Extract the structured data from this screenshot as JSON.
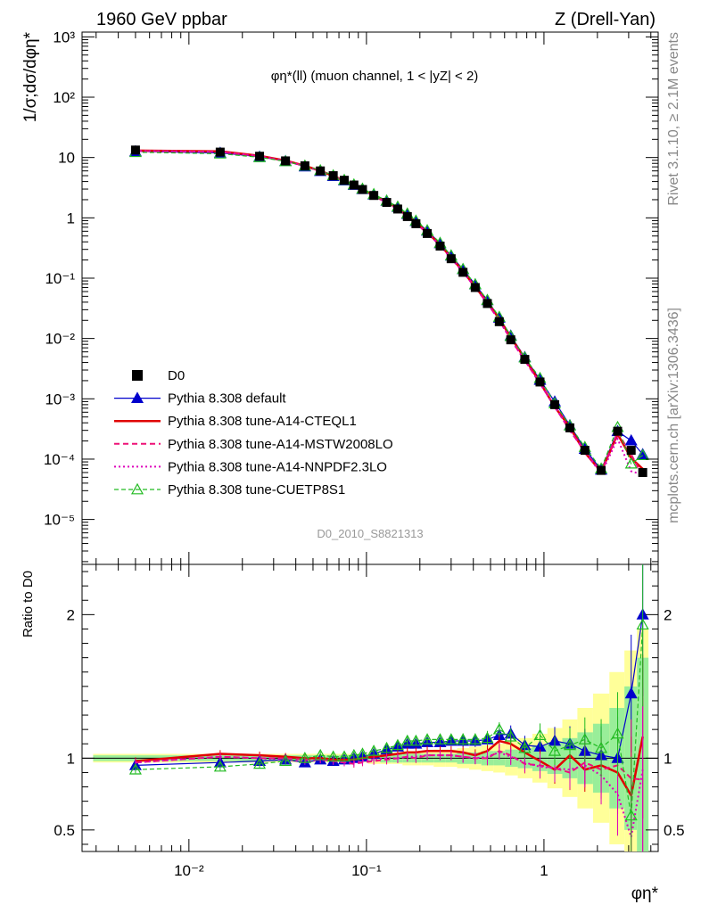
{
  "header": {
    "left": "1960 GeV ppbar",
    "right": "Z (Drell-Yan)"
  },
  "side_text": {
    "top": "Rivet 3.1.10, ≥ 2.1M events",
    "bottom": "mcplots.cern.ch [arXiv:1306.3436]"
  },
  "main_panel": {
    "ylabel": "1/σ;dσ/dφη*",
    "annotation": "φη*(ll) (muon channel, 1 < |yZ| < 2)",
    "watermark": "D0_2010_S8821313",
    "y_ticks": [
      "10⁻⁵",
      "10⁻⁴",
      "10⁻³",
      "10⁻²",
      "10⁻¹",
      "1",
      "10",
      "10²",
      "10³"
    ]
  },
  "ratio_panel": {
    "ylabel": "Ratio to D0",
    "y_ticks": [
      "0.5",
      "1",
      "2"
    ]
  },
  "x_axis": {
    "label": "φη*",
    "ticks": [
      "10⁻²",
      "10⁻¹",
      "1"
    ]
  },
  "legend": [
    {
      "label": "D0",
      "color": "#000000",
      "style": "square"
    },
    {
      "label": "Pythia 8.308 default",
      "color": "#0000cc",
      "style": "solid-triangle"
    },
    {
      "label": "Pythia 8.308 tune-A14-CTEQL1",
      "color": "#e00000",
      "style": "solid-thick"
    },
    {
      "label": "Pythia 8.308 tune-A14-MSTW2008LO",
      "color": "#ee1177",
      "style": "dashed"
    },
    {
      "label": "Pythia 8.308 tune-A14-NNPDF2.3LO",
      "color": "#dd00bb",
      "style": "dotted"
    },
    {
      "label": "Pythia 8.308 tune-CUETP8S1",
      "color": "#22bb22",
      "style": "dashed-open-triangle"
    }
  ],
  "chart_data": {
    "type": "line",
    "x_scale": "log",
    "xlim": [
      0.0025,
      4.4
    ],
    "main_y_scale": "log",
    "main_ylim": [
      1.8e-06,
      1200
    ],
    "ratio_ylim": [
      0.35,
      2.35
    ],
    "x": [
      0.005,
      0.015,
      0.025,
      0.035,
      0.045,
      0.055,
      0.065,
      0.075,
      0.085,
      0.095,
      0.11,
      0.13,
      0.15,
      0.17,
      0.19,
      0.22,
      0.26,
      0.3,
      0.35,
      0.41,
      0.48,
      0.56,
      0.65,
      0.78,
      0.95,
      1.15,
      1.4,
      1.7,
      2.1,
      2.6,
      3.1,
      3.6
    ],
    "data_values": [
      13.3,
      12.3,
      10.5,
      8.8,
      7.3,
      6.0,
      5.0,
      4.2,
      3.5,
      2.95,
      2.35,
      1.8,
      1.4,
      1.05,
      0.8,
      0.55,
      0.34,
      0.21,
      0.125,
      0.07,
      0.038,
      0.019,
      0.0095,
      0.0045,
      0.0019,
      0.0008,
      0.00033,
      0.00014,
      6.5e-05,
      0.00029,
      0.00014,
      6e-05
    ],
    "data_band_inner": [
      0.02,
      0.02,
      0.02,
      0.02,
      0.02,
      0.02,
      0.02,
      0.02,
      0.02,
      0.02,
      0.02,
      0.03,
      0.03,
      0.03,
      0.03,
      0.03,
      0.03,
      0.03,
      0.04,
      0.04,
      0.05,
      0.05,
      0.06,
      0.07,
      0.09,
      0.11,
      0.14,
      0.18,
      0.24,
      0.35,
      0.5,
      0.7
    ],
    "data_band_outer": [
      0.03,
      0.03,
      0.03,
      0.03,
      0.03,
      0.03,
      0.03,
      0.03,
      0.03,
      0.03,
      0.04,
      0.04,
      0.04,
      0.05,
      0.05,
      0.05,
      0.06,
      0.06,
      0.07,
      0.08,
      0.09,
      0.1,
      0.12,
      0.14,
      0.17,
      0.21,
      0.27,
      0.35,
      0.45,
      0.6,
      0.75,
      0.9
    ],
    "series": [
      {
        "name": "Pythia 8.308 default",
        "color": "#0000cc",
        "ratio": [
          0.95,
          0.97,
          0.98,
          0.99,
          0.97,
          0.99,
          0.98,
          0.99,
          1.0,
          1.01,
          1.03,
          1.06,
          1.08,
          1.1,
          1.1,
          1.11,
          1.11,
          1.12,
          1.12,
          1.12,
          1.13,
          1.16,
          1.17,
          1.09,
          1.08,
          1.12,
          1.1,
          1.05,
          1.02,
          1.0,
          1.45,
          2.0
        ]
      },
      {
        "name": "Pythia 8.308 tune-A14-CTEQL1",
        "color": "#e00000",
        "ratio": [
          0.98,
          1.03,
          1.02,
          1.01,
          1.0,
          1.0,
          0.99,
          0.99,
          0.99,
          1.0,
          1.01,
          1.02,
          1.03,
          1.04,
          1.04,
          1.05,
          1.05,
          1.05,
          1.04,
          1.02,
          1.05,
          1.12,
          1.1,
          1.04,
          0.98,
          0.92,
          1.02,
          0.92,
          0.95,
          0.9,
          0.74,
          1.15
        ]
      },
      {
        "name": "Pythia 8.308 tune-A14-MSTW2008LO",
        "color": "#ee1177",
        "ratio": [
          0.97,
          1.01,
          1.0,
          1.0,
          0.99,
          0.99,
          0.98,
          0.97,
          0.96,
          0.97,
          0.98,
          0.99,
          1.0,
          1.01,
          1.0,
          1.02,
          1.02,
          1.02,
          1.01,
          1.0,
          1.0,
          1.05,
          1.02,
          0.96,
          0.95,
          0.93,
          0.9,
          0.97,
          0.92,
          0.95,
          0.86,
          0.85
        ]
      },
      {
        "name": "Pythia 8.308 tune-A14-NNPDF2.3LO",
        "color": "#dd00bb",
        "ratio": [
          0.97,
          1.01,
          1.0,
          0.99,
          0.98,
          0.99,
          0.98,
          0.97,
          0.97,
          0.98,
          0.99,
          1.0,
          1.0,
          1.01,
          1.01,
          1.02,
          1.02,
          1.02,
          1.01,
          1.0,
          1.01,
          1.04,
          1.01,
          0.97,
          0.94,
          0.93,
          0.92,
          0.95,
          0.88,
          0.75,
          0.45,
          0.92
        ]
      },
      {
        "name": "Pythia 8.308 tune-CUETP8S1",
        "color": "#22bb22",
        "ratio": [
          0.92,
          0.94,
          0.96,
          0.98,
          1.0,
          1.02,
          1.01,
          1.01,
          1.02,
          1.03,
          1.05,
          1.07,
          1.09,
          1.12,
          1.12,
          1.13,
          1.13,
          1.13,
          1.13,
          1.13,
          1.14,
          1.2,
          1.15,
          1.07,
          1.16,
          1.05,
          1.09,
          1.13,
          1.07,
          1.17,
          0.6,
          1.93
        ]
      }
    ]
  }
}
